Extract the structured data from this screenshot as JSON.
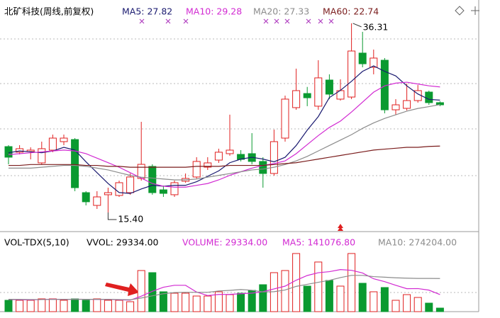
{
  "chart_data": [
    {
      "type": "candlestick",
      "title": "北矿科技(周线,前复权)",
      "ylim": [
        13.44,
        38.89
      ],
      "up_color": "#e02020",
      "down_color": "#0a9a30",
      "open": [
        22.68,
        22.06,
        22.13,
        20.88,
        22.29,
        23.23,
        23.46,
        17.59,
        16.18,
        17.36,
        17.28,
        17.59,
        19.16,
        20.49,
        17.9,
        17.36,
        18.85,
        19.32,
        20.41,
        21.19,
        21.9,
        21.82,
        21.9,
        21.04,
        19.71,
        23.62,
        26.99,
        28.55,
        27.15,
        30.04,
        27.93,
        28.16,
        33.02,
        31.45,
        32.23,
        26.75,
        26.91,
        27.77,
        28.71,
        27.54
      ],
      "high": [
        22.84,
        22.84,
        22.6,
        23.23,
        24.01,
        24.01,
        23.62,
        17.75,
        17.75,
        18.14,
        18.92,
        19.71,
        25.42,
        20.72,
        18.37,
        18.92,
        19.71,
        21.51,
        21.51,
        22.45,
        26.21,
        22.29,
        24.17,
        21.51,
        24.56,
        28.32,
        31.3,
        29.28,
        32.23,
        30.67,
        30.12,
        36.31,
        35.37,
        33.41,
        32.47,
        27.93,
        29.65,
        29.49,
        28.87,
        27.69
      ],
      "low": [
        20.72,
        21.82,
        21.27,
        20.72,
        22.06,
        22.84,
        17.75,
        16.18,
        15.79,
        15.4,
        17.12,
        17.36,
        18.92,
        17.36,
        17.12,
        17.12,
        18.69,
        19.16,
        20.1,
        20.88,
        21.67,
        21.04,
        20.72,
        18.14,
        19.47,
        23.23,
        26.75,
        27.15,
        26.75,
        27.93,
        27.77,
        27.93,
        31.45,
        30.67,
        26.36,
        26.21,
        26.68,
        27.54,
        27.3,
        27.15
      ],
      "close": [
        21.51,
        22.45,
        22.29,
        22.45,
        23.62,
        23.62,
        18.14,
        16.58,
        17.12,
        17.59,
        18.69,
        19.32,
        20.72,
        17.59,
        17.51,
        18.69,
        19.16,
        21.04,
        20.88,
        22.06,
        22.29,
        21.27,
        21.04,
        19.71,
        23.23,
        27.93,
        28.87,
        28.08,
        30.28,
        28.48,
        28.87,
        33.25,
        31.84,
        32.47,
        26.75,
        27.3,
        27.77,
        28.87,
        27.54,
        27.3
      ],
      "series": [
        {
          "name": "MA5",
          "legend": "MA5: 27.82",
          "color": "#1a1a70",
          "values": [
            22.0,
            22.2,
            22.1,
            22.0,
            22.2,
            22.6,
            22.3,
            21.0,
            19.8,
            18.6,
            17.6,
            17.5,
            18.0,
            18.4,
            18.3,
            18.4,
            18.4,
            18.8,
            19.4,
            20.0,
            20.9,
            21.3,
            21.5,
            21.3,
            21.0,
            21.5,
            22.8,
            24.5,
            26.0,
            28.1,
            28.9,
            29.9,
            31.0,
            31.6,
            31.0,
            30.5,
            29.4,
            28.5,
            27.9,
            27.82
          ]
        },
        {
          "name": "MA10",
          "legend": "MA10: 29.28",
          "color": "#d22ad2",
          "values": [
            21.8,
            21.9,
            22.0,
            22.1,
            22.2,
            22.3,
            22.2,
            21.9,
            21.4,
            20.9,
            20.4,
            19.8,
            19.2,
            18.6,
            18.3,
            18.2,
            18.2,
            18.4,
            18.6,
            19.0,
            19.5,
            19.9,
            20.3,
            20.6,
            20.8,
            21.1,
            21.9,
            22.9,
            23.9,
            24.8,
            25.5,
            26.5,
            27.6,
            28.7,
            29.4,
            29.7,
            29.8,
            29.6,
            29.4,
            29.28
          ]
        },
        {
          "name": "MA20",
          "legend": "MA20: 27.33",
          "color": "#8c8c8c",
          "values": [
            20.3,
            20.3,
            20.3,
            20.4,
            20.5,
            20.6,
            20.6,
            20.5,
            20.3,
            20.1,
            19.8,
            19.5,
            19.3,
            19.2,
            19.1,
            19.0,
            19.0,
            19.1,
            19.3,
            19.5,
            19.7,
            19.9,
            20.1,
            20.2,
            20.4,
            20.7,
            21.1,
            21.6,
            22.2,
            22.8,
            23.4,
            24.0,
            24.7,
            25.3,
            25.8,
            26.2,
            26.6,
            26.9,
            27.1,
            27.33
          ]
        },
        {
          "name": "MA60",
          "legend": "MA60: 22.74",
          "color": "#7a1c1c",
          "values": [
            20.6,
            20.6,
            20.7,
            20.7,
            20.7,
            20.7,
            20.7,
            20.6,
            20.6,
            20.5,
            20.5,
            20.4,
            20.4,
            20.4,
            20.4,
            20.4,
            20.4,
            20.5,
            20.5,
            20.5,
            20.6,
            20.6,
            20.6,
            20.6,
            20.7,
            20.8,
            20.9,
            21.1,
            21.3,
            21.5,
            21.7,
            21.9,
            22.1,
            22.3,
            22.4,
            22.5,
            22.6,
            22.6,
            22.7,
            22.74
          ]
        }
      ],
      "annotations": [
        {
          "value": 36.31,
          "label": "36.31"
        },
        {
          "value": 15.4,
          "label": "15.40"
        }
      ]
    },
    {
      "type": "bar",
      "title": "VOL-TDX(5,10)",
      "vvol_label": "VVOL: 29334.00",
      "ylim": [
        0,
        557000
      ],
      "series": [
        {
          "name": "VOLUME",
          "legend": "VOLUME: 29334.00",
          "color": "#d22ad2",
          "values": [
            93900,
            93900,
            93900,
            105600,
            105600,
            93900,
            105600,
            93900,
            105600,
            93900,
            93900,
            82100,
            340300,
            322700,
            164300,
            152500,
            152500,
            129100,
            129100,
            164300,
            140800,
            152500,
            176000,
            222900,
            322700,
            340300,
            481100,
            211200,
            410700,
            258100,
            211200,
            481100,
            234700,
            164300,
            199500,
            93900,
            140800,
            117300,
            70400,
            29334
          ]
        },
        {
          "name": "MA5",
          "legend": "MA5: 141076.80",
          "color": "#d22ad2",
          "values": [
            100000,
            98000,
            97000,
            100000,
            103000,
            101000,
            103000,
            102000,
            101000,
            101000,
            98000,
            95000,
            128000,
            168000,
            202000,
            218000,
            218000,
            162000,
            133000,
            142000,
            143000,
            148000,
            153000,
            165000,
            188000,
            211000,
            260000,
            299000,
            322000,
            331000,
            348000,
            342000,
            320000,
            272000,
            248000,
            218000,
            190000,
            191000,
            178000,
            141076.8
          ]
        },
        {
          "name": "MA10",
          "legend": "MA10: 274204.00",
          "color": "#8c8c8c",
          "values": [
            102000,
            101000,
            100000,
            100000,
            101000,
            101000,
            102000,
            102000,
            102000,
            101000,
            100000,
            98000,
            113000,
            131000,
            148000,
            158000,
            160000,
            160000,
            160000,
            171000,
            176000,
            183000,
            177000,
            163000,
            165000,
            179000,
            209000,
            226000,
            243000,
            259000,
            282000,
            300000,
            300000,
            290000,
            285000,
            280000,
            277000,
            275000,
            275000,
            274204
          ]
        }
      ]
    }
  ]
}
